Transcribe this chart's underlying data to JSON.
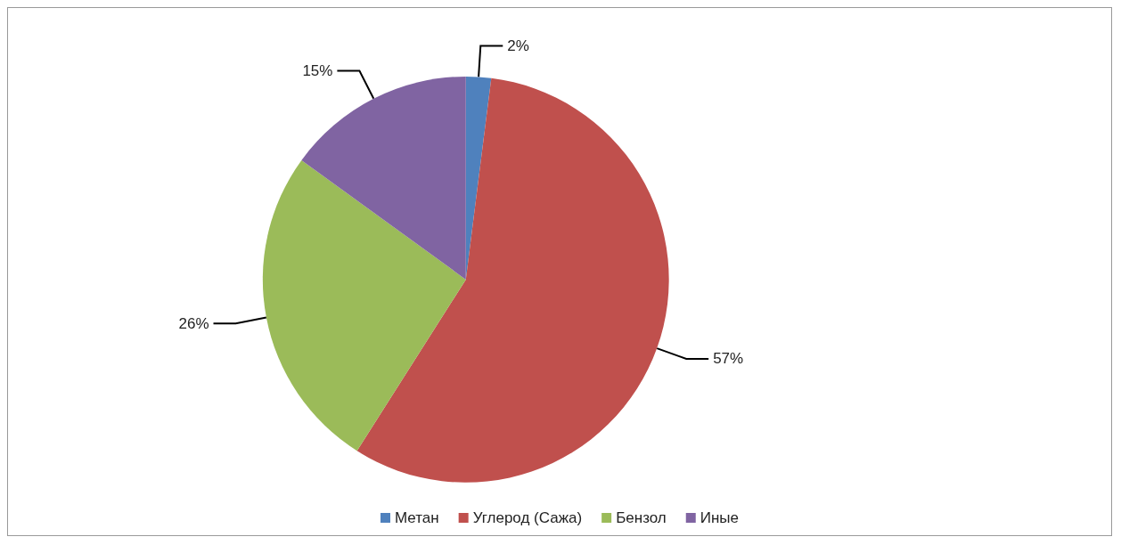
{
  "chart_data": {
    "type": "pie",
    "categories": [
      "Метан",
      "Углерод (Сажа)",
      "Бензол",
      "Иные"
    ],
    "values": [
      2,
      57,
      26,
      15
    ],
    "value_labels": [
      "2%",
      "57%",
      "26%",
      "15%"
    ],
    "colors": [
      "#4f81bd",
      "#c0504d",
      "#9bbb59",
      "#8064a2"
    ],
    "legend": "bottom"
  }
}
